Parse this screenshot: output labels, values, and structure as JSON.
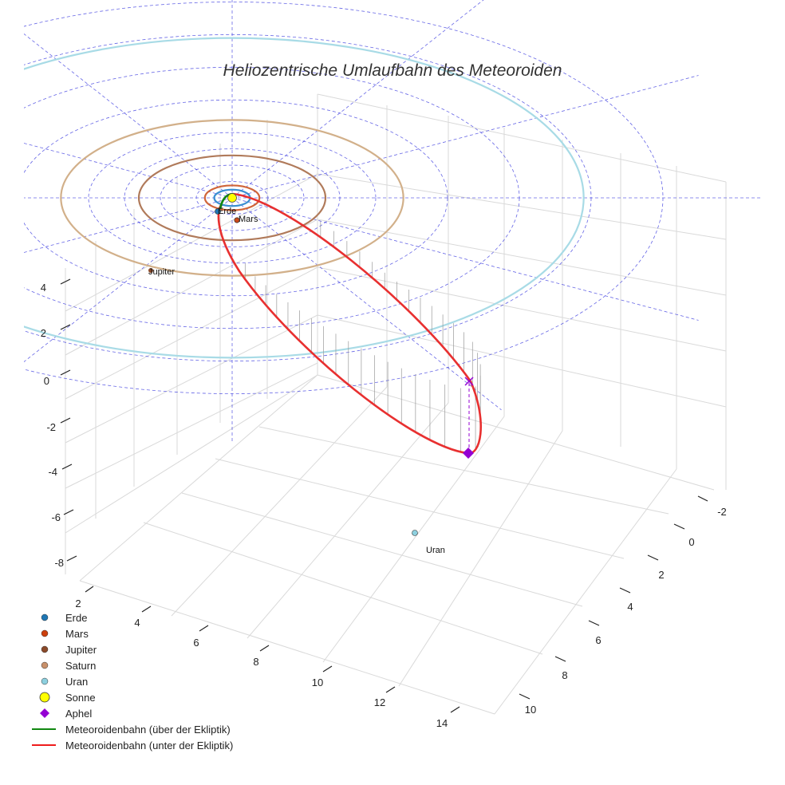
{
  "chart_data": {
    "type": "3d-orbit",
    "title": "Heliozentrische Umlaufbahn des Meteoroiden",
    "axes": {
      "x": {
        "ticks": [
          2,
          4,
          6,
          8,
          10,
          12,
          14
        ]
      },
      "y": {
        "ticks": [
          -2,
          0,
          2,
          4,
          6,
          8,
          10
        ]
      },
      "z": {
        "ticks": [
          4,
          2,
          0,
          -2,
          -4,
          -6,
          -8
        ]
      }
    },
    "orbits": [
      {
        "name": "Erde",
        "radius_au": 1.0,
        "color": "#3a8fd1"
      },
      {
        "name": "Mars",
        "radius_au": 1.52,
        "color": "#d0653a"
      },
      {
        "name": "Jupiter",
        "radius_au": 5.2,
        "color": "#b07a5a"
      },
      {
        "name": "Saturn",
        "radius_au": 9.54,
        "color": "#d2b08a"
      },
      {
        "name": "Uran",
        "radius_au": 19.2,
        "color": "#a8dbe6"
      }
    ],
    "planet_labels": [
      {
        "name": "Erde",
        "color": "#1f77b4"
      },
      {
        "name": "Mars",
        "color": "#cc4a1a"
      },
      {
        "name": "Jupiter",
        "color": "#8b4a2a"
      },
      {
        "name": "Uran",
        "color": "#8dd0df"
      }
    ],
    "legend": [
      {
        "label": "Erde",
        "marker": "dot",
        "color": "#1f77b4"
      },
      {
        "label": "Mars",
        "marker": "dot",
        "color": "#cc3f0c"
      },
      {
        "label": "Jupiter",
        "marker": "dot",
        "color": "#8b4a2a"
      },
      {
        "label": "Saturn",
        "marker": "dot",
        "color": "#c8906a"
      },
      {
        "label": "Uran",
        "marker": "dot",
        "color": "#8dd0df"
      },
      {
        "label": "Sonne",
        "marker": "sun",
        "color": "#ffff00"
      },
      {
        "label": "Aphel",
        "marker": "diamond",
        "color": "#9400d3"
      },
      {
        "label": "Meteoroidenbahn (über der Ekliptik)",
        "marker": "line",
        "color": "#118811"
      },
      {
        "label": "Meteoroidenbahn (unter der Ekliptik)",
        "marker": "line",
        "color": "#ee1c1c"
      }
    ],
    "meteoroid_orbit": {
      "color_above": "#118811",
      "color_below": "#e83030",
      "aphel_color": "#9400d3"
    },
    "ecliptic_grid_color": "#3333dd",
    "grid": true
  }
}
